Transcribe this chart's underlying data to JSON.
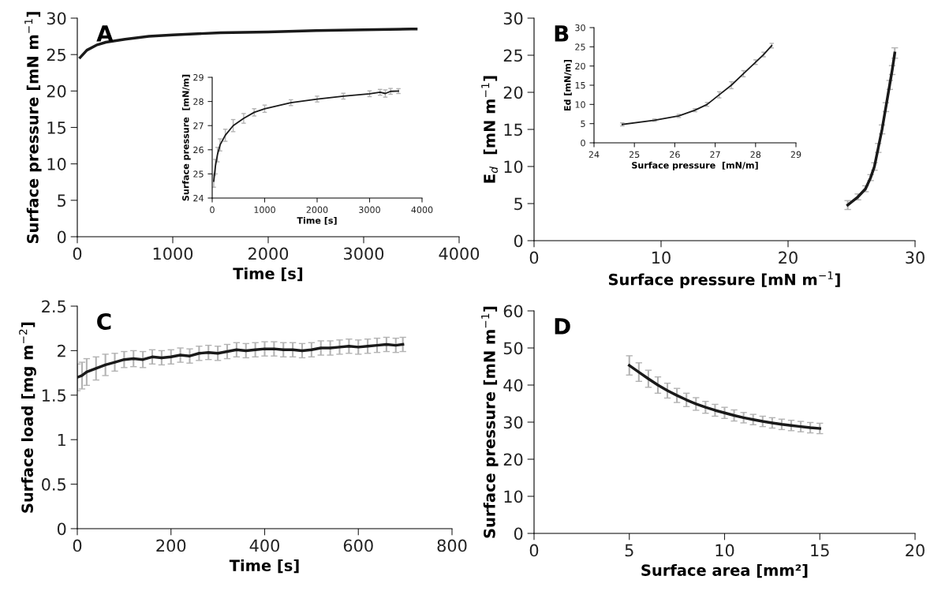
{
  "chart_data": [
    {
      "type": "line",
      "annotations": [
        "A"
      ],
      "xlabel": "Time [s]",
      "ylabel": "Surface pressure [mN m$^{−1}$]",
      "xlim": [
        0,
        4000
      ],
      "ylim": [
        0,
        30
      ],
      "xticks": [
        0,
        1000,
        2000,
        3000,
        4000
      ],
      "yticks": [
        0,
        5,
        10,
        15,
        20,
        25,
        30
      ],
      "grid": false,
      "legend": false,
      "series": [
        {
          "color": "#1a1a1a",
          "x": [
            30,
            100,
            200,
            300,
            500,
            750,
            1000,
            1500,
            2000,
            2500,
            3000,
            3500,
            3550
          ],
          "values": [
            24.6,
            25.6,
            26.3,
            26.7,
            27.1,
            27.5,
            27.7,
            28.0,
            28.1,
            28.3,
            28.4,
            28.5,
            28.5
          ]
        }
      ]
    },
    {
      "type": "line",
      "xlabel": "Time [s]",
      "ylabel": "Surface pressure  [mN/m]",
      "xlim": [
        0,
        4000
      ],
      "ylim": [
        24,
        29
      ],
      "xticks": [
        0,
        1000,
        2000,
        3000,
        4000
      ],
      "yticks": [
        24,
        25,
        26,
        27,
        28,
        29
      ],
      "grid": false,
      "legend": false,
      "series": [
        {
          "color": "#1a1a1a",
          "x": [
            30,
            60,
            100,
            150,
            250,
            400,
            600,
            800,
            1000,
            1500,
            2000,
            2500,
            3000,
            3200,
            3300,
            3400,
            3550
          ],
          "values": [
            24.7,
            25.3,
            25.8,
            26.2,
            26.6,
            27.0,
            27.3,
            27.55,
            27.7,
            27.95,
            28.1,
            28.22,
            28.32,
            28.38,
            28.33,
            28.42,
            28.43
          ],
          "errors": [
            0.25,
            0.3,
            0.3,
            0.25,
            0.25,
            0.25,
            0.2,
            0.15,
            0.15,
            0.12,
            0.12,
            0.12,
            0.12,
            0.12,
            0.15,
            0.12,
            0.1
          ]
        }
      ]
    },
    {
      "type": "line",
      "annotations": [
        "B"
      ],
      "xlabel": "Surface pressure [mN m$^{−1}$]",
      "ylabel": "E$_{d}$  [mN m$^{−1}$]",
      "xlim": [
        0,
        30
      ],
      "ylim": [
        0,
        30
      ],
      "xticks": [
        0,
        10,
        20,
        30
      ],
      "yticks": [
        0,
        5,
        10,
        15,
        20,
        25,
        30
      ],
      "grid": false,
      "legend": false,
      "series": [
        {
          "color": "#1a1a1a",
          "x": [
            24.7,
            25.5,
            26.1,
            26.5,
            26.8,
            27.1,
            27.4,
            27.7,
            28.0,
            28.2,
            28.4
          ],
          "values": [
            4.8,
            5.9,
            7.0,
            8.5,
            10.0,
            12.5,
            15.0,
            18.0,
            21.0,
            23.0,
            25.3
          ],
          "errors": [
            0.6,
            0.4,
            0.4,
            0.4,
            0.5,
            0.6,
            0.6,
            0.6,
            0.6,
            0.6,
            0.7
          ]
        }
      ]
    },
    {
      "type": "line",
      "xlabel": "Surface pressure  [mN/m]",
      "ylabel": "Ed [mN/m]",
      "xlim": [
        24,
        29
      ],
      "ylim": [
        0,
        30
      ],
      "xticks": [
        24,
        25,
        26,
        27,
        28,
        29
      ],
      "yticks": [
        0,
        5,
        10,
        15,
        20,
        25,
        30
      ],
      "grid": false,
      "legend": false,
      "series": [
        {
          "color": "#1a1a1a",
          "x": [
            24.7,
            25.5,
            26.1,
            26.5,
            26.8,
            27.1,
            27.4,
            27.7,
            28.0,
            28.2,
            28.4
          ],
          "values": [
            4.8,
            5.9,
            7.0,
            8.5,
            10.0,
            12.5,
            15.0,
            18.0,
            21.0,
            23.0,
            25.3
          ],
          "errors": [
            0.4,
            0.3,
            0.4,
            0.4,
            0.5,
            0.8,
            0.9,
            0.8,
            0.6,
            0.6,
            0.6
          ]
        }
      ]
    },
    {
      "type": "line",
      "annotations": [
        "C"
      ],
      "xlabel": "Time [s]",
      "ylabel": "Surface load [mg m$^{−2}$]",
      "xlim": [
        0,
        800
      ],
      "ylim": [
        0,
        2.5
      ],
      "xticks": [
        0,
        200,
        400,
        600,
        800
      ],
      "yticks": [
        0,
        0.5,
        1,
        1.5,
        2,
        2.5
      ],
      "grid": false,
      "legend": false,
      "series": [
        {
          "color": "#1a1a1a",
          "x": [
            0,
            10,
            20,
            40,
            60,
            80,
            100,
            120,
            140,
            160,
            180,
            200,
            220,
            240,
            260,
            280,
            300,
            320,
            340,
            360,
            380,
            400,
            420,
            440,
            460,
            480,
            500,
            520,
            540,
            560,
            580,
            600,
            620,
            640,
            660,
            680,
            695
          ],
          "values": [
            1.7,
            1.72,
            1.76,
            1.8,
            1.84,
            1.87,
            1.9,
            1.91,
            1.9,
            1.93,
            1.92,
            1.93,
            1.95,
            1.94,
            1.97,
            1.98,
            1.97,
            1.99,
            2.01,
            2.0,
            2.01,
            2.02,
            2.02,
            2.01,
            2.01,
            2.0,
            2.01,
            2.03,
            2.03,
            2.04,
            2.05,
            2.04,
            2.05,
            2.06,
            2.07,
            2.06,
            2.07
          ],
          "errors": [
            0.15,
            0.15,
            0.15,
            0.13,
            0.12,
            0.1,
            0.09,
            0.09,
            0.09,
            0.08,
            0.08,
            0.08,
            0.08,
            0.08,
            0.08,
            0.08,
            0.08,
            0.08,
            0.08,
            0.08,
            0.08,
            0.08,
            0.08,
            0.08,
            0.08,
            0.08,
            0.08,
            0.08,
            0.08,
            0.08,
            0.08,
            0.08,
            0.08,
            0.08,
            0.08,
            0.08,
            0.08
          ]
        }
      ]
    },
    {
      "type": "line",
      "annotations": [
        "D"
      ],
      "xlabel": "Surface area [mm²]",
      "ylabel": "Surface pressure [mN m$^{−1}$]",
      "xlim": [
        0,
        20
      ],
      "ylim": [
        0,
        60
      ],
      "xticks": [
        0,
        5,
        10,
        15,
        20
      ],
      "yticks": [
        0,
        10,
        20,
        30,
        40,
        50,
        60
      ],
      "grid": false,
      "legend": false,
      "series": [
        {
          "color": "#1a1a1a",
          "x": [
            5,
            5.5,
            6,
            6.5,
            7,
            7.5,
            8,
            8.5,
            9,
            9.5,
            10,
            10.5,
            11,
            11.5,
            12,
            12.5,
            13,
            13.5,
            14,
            14.5,
            15
          ],
          "values": [
            45.3,
            43.5,
            41.7,
            40.0,
            38.5,
            37.2,
            36.0,
            34.9,
            34.0,
            33.2,
            32.5,
            31.8,
            31.2,
            30.7,
            30.2,
            29.8,
            29.4,
            29.1,
            28.8,
            28.5,
            28.3
          ],
          "errors": [
            2.6,
            2.5,
            2.3,
            2.2,
            2.0,
            1.9,
            1.8,
            1.7,
            1.6,
            1.6,
            1.5,
            1.5,
            1.4,
            1.4,
            1.4,
            1.4,
            1.4,
            1.4,
            1.4,
            1.4,
            1.4
          ]
        }
      ]
    }
  ]
}
